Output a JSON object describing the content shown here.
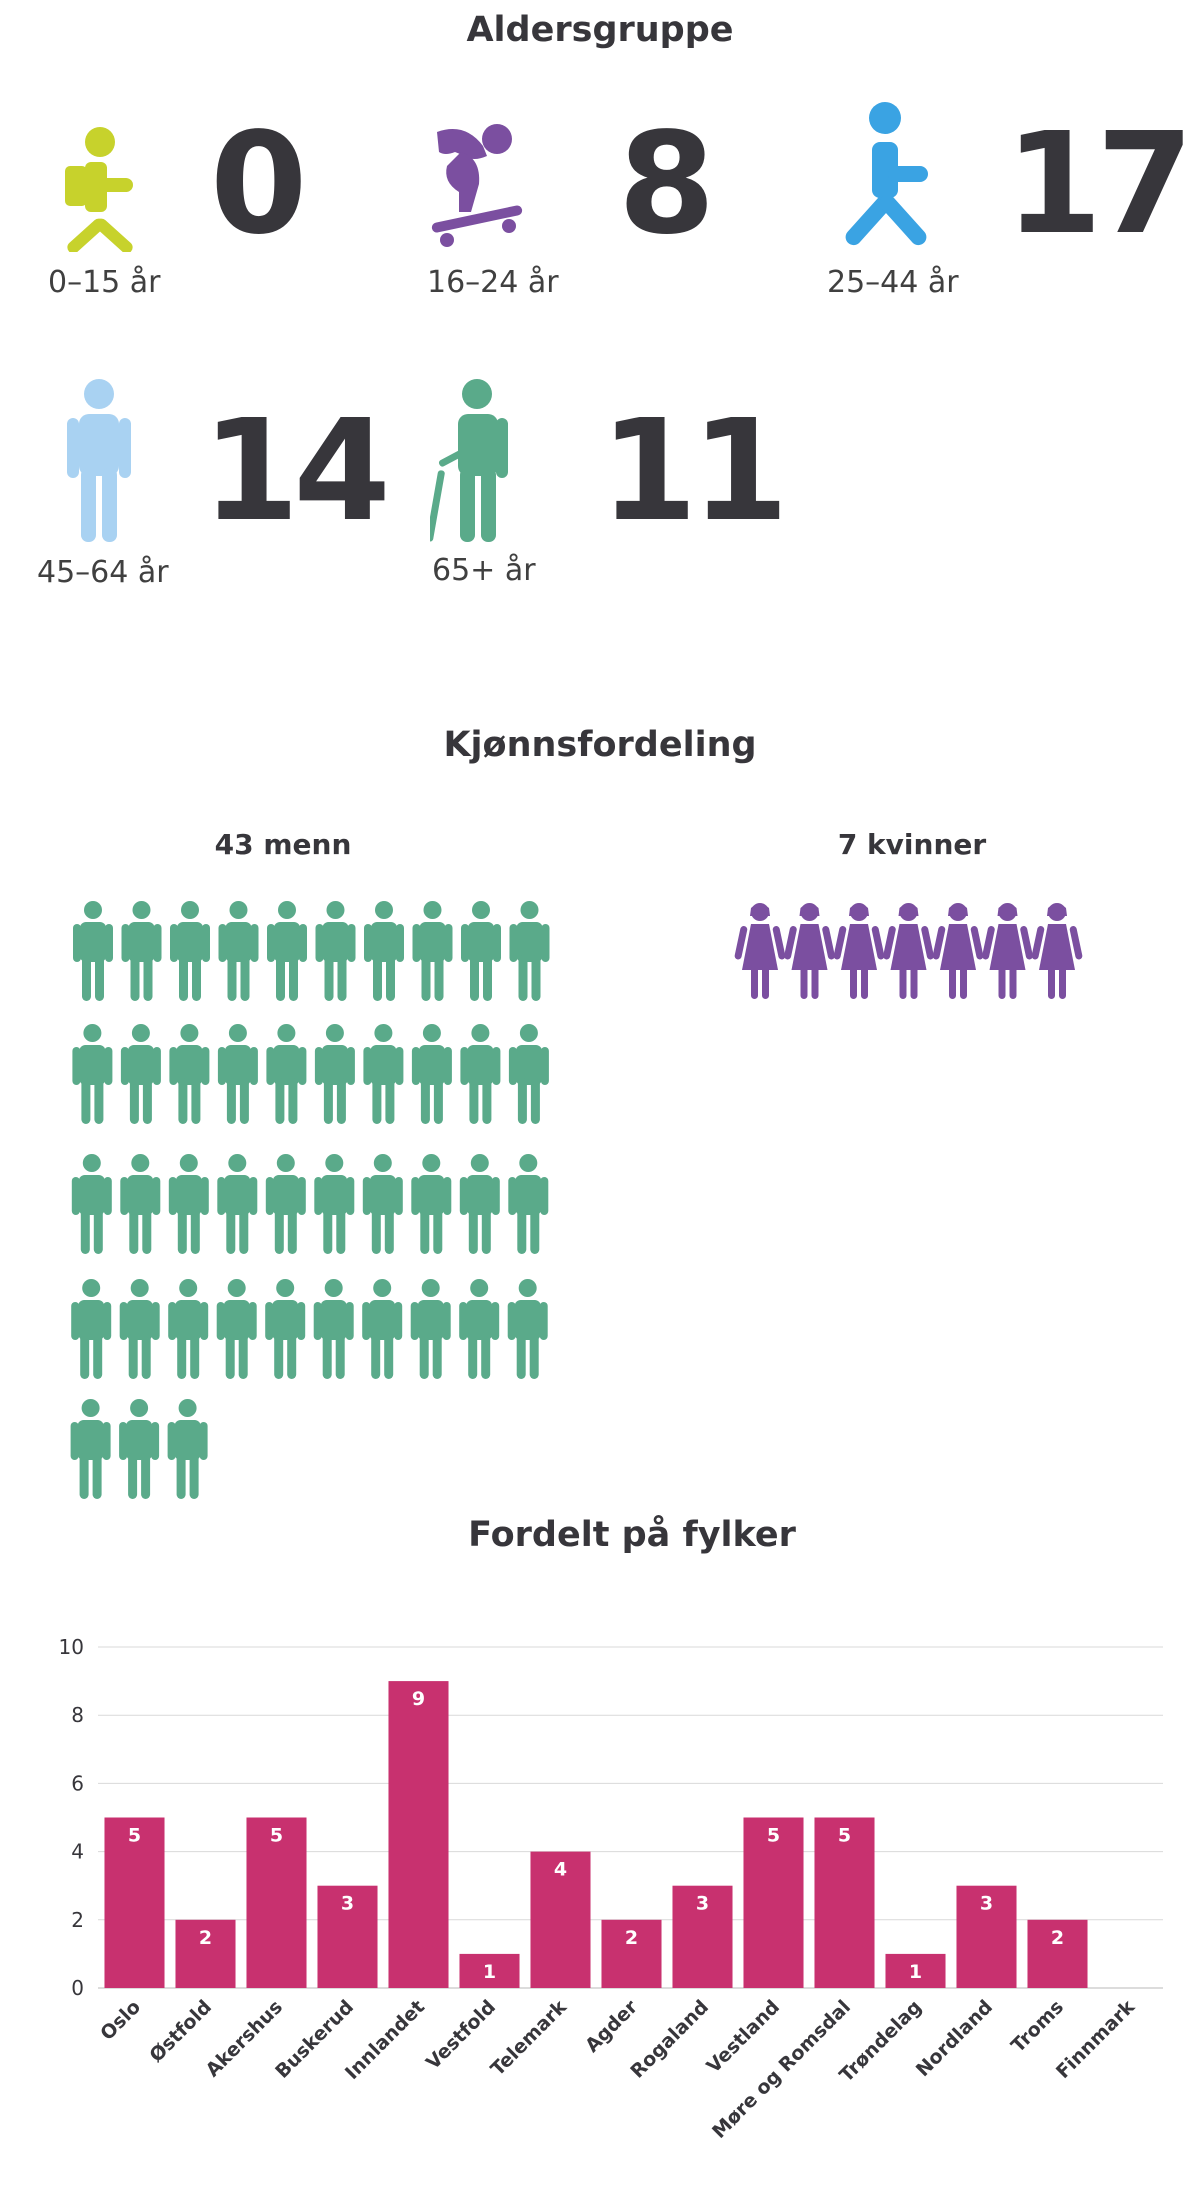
{
  "sections": {
    "age_title": "Aldersgruppe",
    "gender_title": "Kjønnsfordeling",
    "county_title": "Fordelt på fylker"
  },
  "age_groups": [
    {
      "label": "0–15 år",
      "value": "0",
      "color": "#c7d22c",
      "icon": "child-with-backpack-icon"
    },
    {
      "label": "16–24 år",
      "value": "8",
      "color": "#7b4fa0",
      "icon": "skateboarder-icon"
    },
    {
      "label": "25–44 år",
      "value": "17",
      "color": "#3aa3e3",
      "icon": "walking-person-icon"
    },
    {
      "label": "45–64 år",
      "value": "14",
      "color": "#a9d2f2",
      "icon": "standing-person-icon"
    },
    {
      "label": "65+ år",
      "value": "11",
      "color": "#5aaa8a",
      "icon": "elderly-person-with-cane-icon"
    }
  ],
  "gender": {
    "men": {
      "label": "43 menn",
      "count": 43,
      "color": "#5aaa8a",
      "icon": "man-icon"
    },
    "women": {
      "label": "7 kvinner",
      "count": 7,
      "color": "#7b4fa0",
      "icon": "woman-icon"
    }
  },
  "chart_data": {
    "type": "bar",
    "title": "Fordelt på fylker",
    "categories": [
      "Oslo",
      "Østfold",
      "Akershus",
      "Buskerud",
      "Innlandet",
      "Vestfold",
      "Telemark",
      "Agder",
      "Rogaland",
      "Vestland",
      "Møre og Romsdal",
      "Trøndelag",
      "Nordland",
      "Troms",
      "Finnmark"
    ],
    "values": [
      5,
      2,
      5,
      3,
      9,
      1,
      4,
      2,
      3,
      5,
      5,
      1,
      3,
      2,
      0
    ],
    "ylim": [
      0,
      10
    ],
    "yticks": [
      0,
      2,
      4,
      6,
      8,
      10
    ],
    "bar_color": "#c8316f",
    "grid": true,
    "legend": "none"
  }
}
